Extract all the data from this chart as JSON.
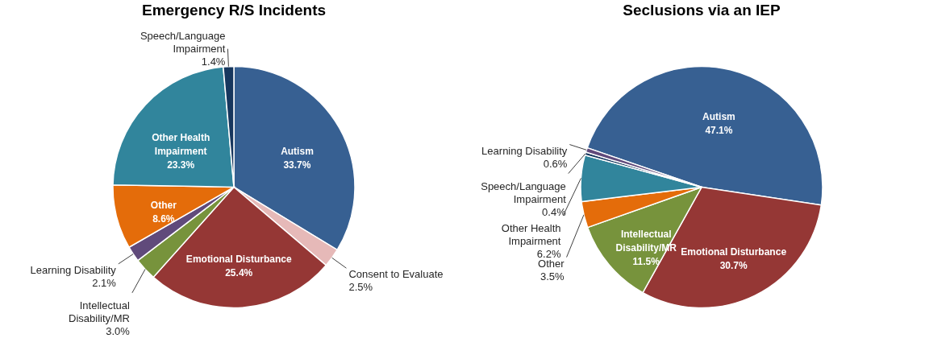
{
  "chart_data": [
    {
      "type": "pie",
      "title": "Emergency R/S Incidents",
      "categories": [
        "Autism",
        "Consent to Evaluate",
        "Emotional Disturbance",
        "Intellectual Disability/MR",
        "Learning Disability",
        "Other",
        "Other Health Impairment",
        "Speech/Language Impairment"
      ],
      "values": [
        33.7,
        2.5,
        25.4,
        3.0,
        2.1,
        8.6,
        23.3,
        1.4
      ],
      "value_labels": [
        "33.7%",
        "2.5%",
        "25.4%",
        "3.0%",
        "2.1%",
        "8.6%",
        "23.3%",
        "1.4%"
      ],
      "colors": [
        "#376092",
        "#e6b9b8",
        "#953735",
        "#77933c",
        "#604a7b",
        "#e46c0a",
        "#31859c",
        "#17375e"
      ],
      "legend": false
    },
    {
      "type": "pie",
      "title": "Seclusions via an IEP",
      "categories": [
        "Autism",
        "Emotional Disturbance",
        "Intellectual Disability/MR",
        "Other",
        "Other Health Impairment",
        "Speech/Language Impairment",
        "Learning Disability"
      ],
      "values": [
        47.1,
        30.7,
        11.5,
        3.5,
        6.2,
        0.4,
        0.6
      ],
      "value_labels": [
        "47.1%",
        "30.7%",
        "11.5%",
        "3.5%",
        "6.2%",
        "0.4%",
        "0.6%"
      ],
      "colors": [
        "#376092",
        "#953735",
        "#77933c",
        "#e46c0a",
        "#31859c",
        "#17375e",
        "#604a7b"
      ],
      "legend": false
    }
  ]
}
